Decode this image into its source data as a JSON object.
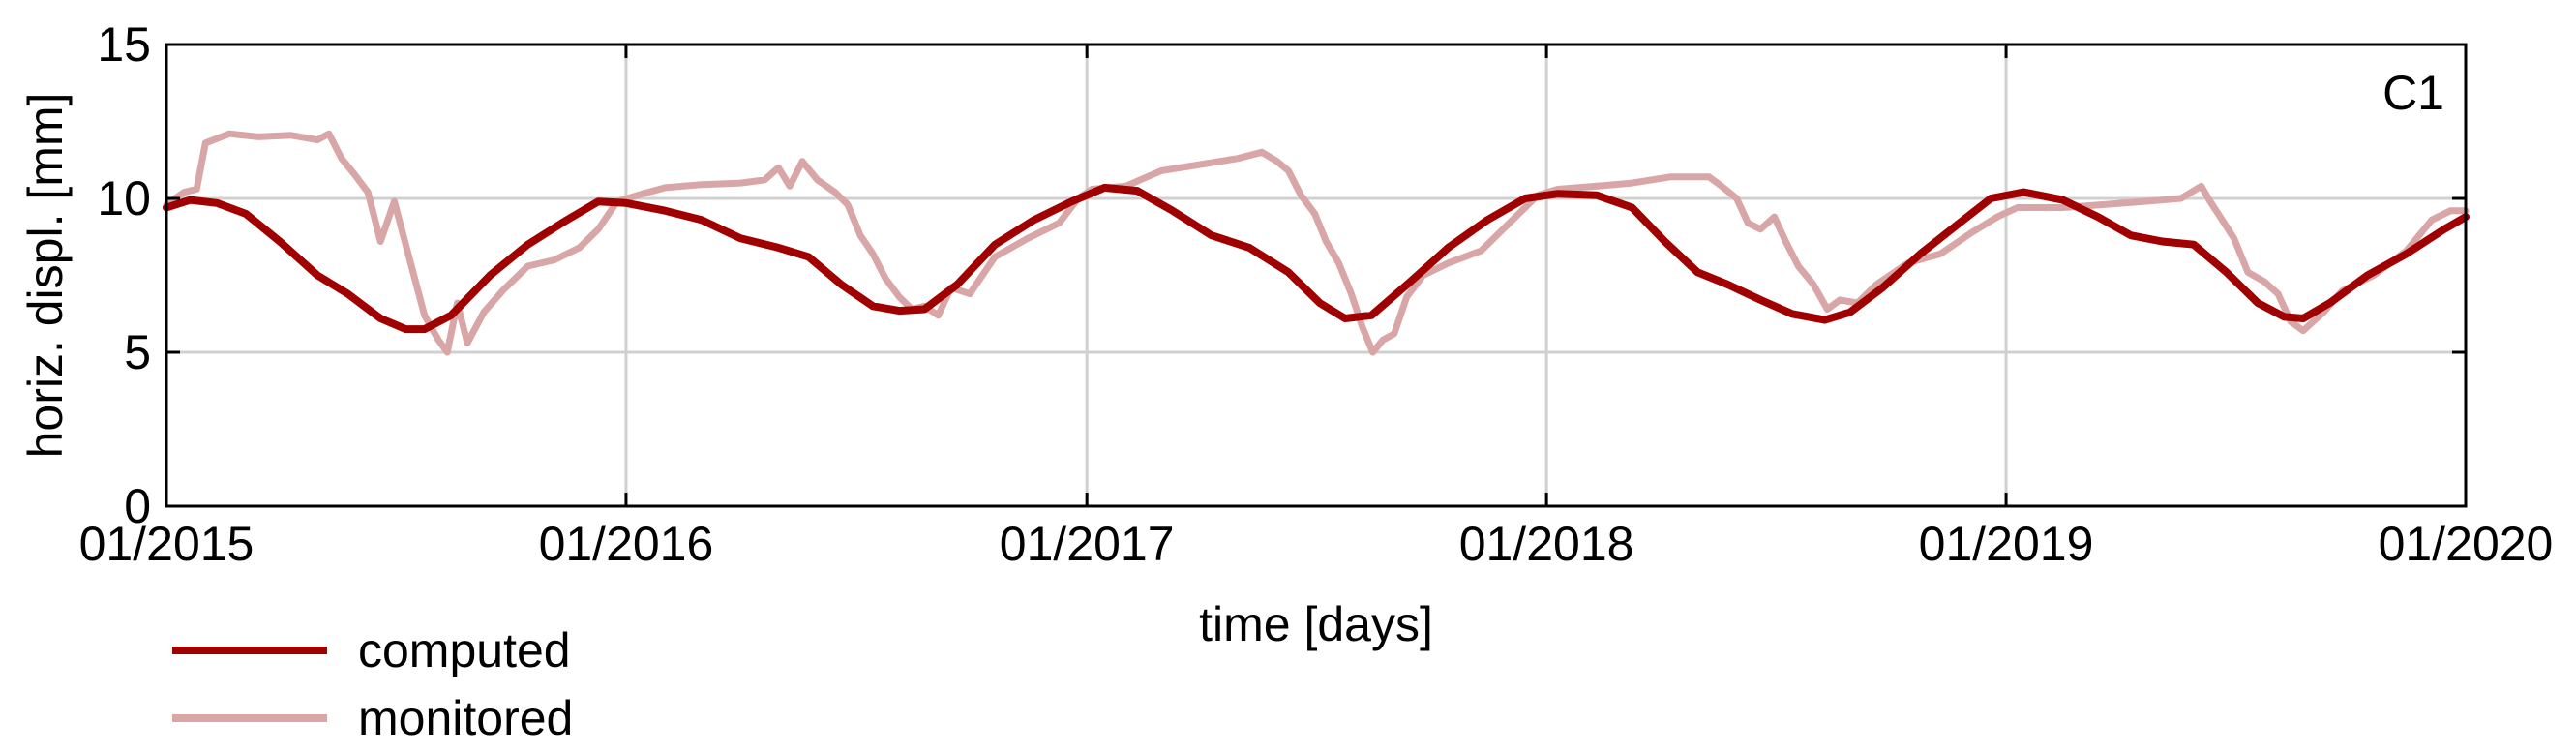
{
  "chart_data": {
    "type": "line",
    "title": "",
    "panel_label": "C1",
    "xlabel": "time [days]",
    "ylabel": "horiz. displ. [mm]",
    "ylim": [
      0,
      15
    ],
    "xlim": [
      "2015-01-01",
      "2020-01-01"
    ],
    "x_ticks": [
      "01/2015",
      "01/2016",
      "01/2017",
      "01/2018",
      "01/2019",
      "01/2020"
    ],
    "y_ticks": [
      "0",
      "5",
      "10",
      "15"
    ],
    "grid": true,
    "legend_position": "bottom-left, outside plot",
    "series": [
      {
        "name": "computed",
        "color": "#a00000",
        "points": [
          [
            "2015-01-01",
            9.7
          ],
          [
            "2015-01-20",
            9.95
          ],
          [
            "2015-02-10",
            9.85
          ],
          [
            "2015-03-05",
            9.5
          ],
          [
            "2015-04-01",
            8.6
          ],
          [
            "2015-05-01",
            7.5
          ],
          [
            "2015-05-25",
            6.9
          ],
          [
            "2015-06-20",
            6.1
          ],
          [
            "2015-07-10",
            5.75
          ],
          [
            "2015-07-25",
            5.75
          ],
          [
            "2015-08-15",
            6.2
          ],
          [
            "2015-09-15",
            7.5
          ],
          [
            "2015-10-15",
            8.5
          ],
          [
            "2015-11-15",
            9.3
          ],
          [
            "2015-12-10",
            9.9
          ],
          [
            "2016-01-01",
            9.85
          ],
          [
            "2016-02-01",
            9.6
          ],
          [
            "2016-03-01",
            9.3
          ],
          [
            "2016-04-01",
            8.7
          ],
          [
            "2016-05-01",
            8.4
          ],
          [
            "2016-05-25",
            8.1
          ],
          [
            "2016-06-20",
            7.2
          ],
          [
            "2016-07-15",
            6.5
          ],
          [
            "2016-08-05",
            6.35
          ],
          [
            "2016-08-25",
            6.4
          ],
          [
            "2016-09-20",
            7.2
          ],
          [
            "2016-10-20",
            8.5
          ],
          [
            "2016-11-20",
            9.3
          ],
          [
            "2016-12-20",
            9.9
          ],
          [
            "2017-01-15",
            10.35
          ],
          [
            "2017-02-10",
            10.25
          ],
          [
            "2017-03-10",
            9.6
          ],
          [
            "2017-04-10",
            8.8
          ],
          [
            "2017-05-10",
            8.4
          ],
          [
            "2017-06-10",
            7.6
          ],
          [
            "2017-07-05",
            6.6
          ],
          [
            "2017-07-25",
            6.1
          ],
          [
            "2017-08-15",
            6.2
          ],
          [
            "2017-09-15",
            7.3
          ],
          [
            "2017-10-15",
            8.4
          ],
          [
            "2017-11-15",
            9.3
          ],
          [
            "2017-12-15",
            10.0
          ],
          [
            "2018-01-10",
            10.15
          ],
          [
            "2018-02-10",
            10.1
          ],
          [
            "2018-03-10",
            9.7
          ],
          [
            "2018-04-05",
            8.6
          ],
          [
            "2018-05-01",
            7.6
          ],
          [
            "2018-05-25",
            7.2
          ],
          [
            "2018-06-20",
            6.7
          ],
          [
            "2018-07-15",
            6.25
          ],
          [
            "2018-08-10",
            6.05
          ],
          [
            "2018-08-30",
            6.3
          ],
          [
            "2018-09-25",
            7.1
          ],
          [
            "2018-10-25",
            8.2
          ],
          [
            "2018-11-25",
            9.2
          ],
          [
            "2018-12-20",
            10.0
          ],
          [
            "2019-01-15",
            10.2
          ],
          [
            "2019-02-15",
            9.95
          ],
          [
            "2019-03-15",
            9.4
          ],
          [
            "2019-04-10",
            8.8
          ],
          [
            "2019-05-05",
            8.6
          ],
          [
            "2019-05-30",
            8.5
          ],
          [
            "2019-06-25",
            7.6
          ],
          [
            "2019-07-20",
            6.6
          ],
          [
            "2019-08-10",
            6.15
          ],
          [
            "2019-08-25",
            6.1
          ],
          [
            "2019-09-15",
            6.6
          ],
          [
            "2019-10-15",
            7.5
          ],
          [
            "2019-11-15",
            8.2
          ],
          [
            "2019-12-15",
            9.0
          ],
          [
            "2020-01-01",
            9.4
          ]
        ]
      },
      {
        "name": "monitored",
        "color": "#d8a6a6",
        "points": [
          [
            "2015-01-01",
            9.8
          ],
          [
            "2015-01-15",
            10.2
          ],
          [
            "2015-01-25",
            10.3
          ],
          [
            "2015-02-01",
            11.8
          ],
          [
            "2015-02-20",
            12.1
          ],
          [
            "2015-03-15",
            12.0
          ],
          [
            "2015-04-10",
            12.05
          ],
          [
            "2015-05-01",
            11.9
          ],
          [
            "2015-05-10",
            12.1
          ],
          [
            "2015-05-20",
            11.3
          ],
          [
            "2015-05-30",
            10.8
          ],
          [
            "2015-06-10",
            10.2
          ],
          [
            "2015-06-20",
            8.6
          ],
          [
            "2015-07-01",
            9.9
          ],
          [
            "2015-07-12",
            8.2
          ],
          [
            "2015-07-25",
            6.2
          ],
          [
            "2015-08-05",
            5.4
          ],
          [
            "2015-08-12",
            5.0
          ],
          [
            "2015-08-20",
            6.6
          ],
          [
            "2015-08-28",
            5.3
          ],
          [
            "2015-09-10",
            6.3
          ],
          [
            "2015-09-25",
            7.0
          ],
          [
            "2015-10-15",
            7.8
          ],
          [
            "2015-11-05",
            8.0
          ],
          [
            "2015-11-25",
            8.4
          ],
          [
            "2015-12-10",
            9.0
          ],
          [
            "2015-12-25",
            9.9
          ],
          [
            "2016-01-10",
            10.1
          ],
          [
            "2016-02-01",
            10.35
          ],
          [
            "2016-03-01",
            10.45
          ],
          [
            "2016-04-01",
            10.5
          ],
          [
            "2016-04-20",
            10.6
          ],
          [
            "2016-05-01",
            11.0
          ],
          [
            "2016-05-10",
            10.4
          ],
          [
            "2016-05-20",
            11.2
          ],
          [
            "2016-06-01",
            10.6
          ],
          [
            "2016-06-15",
            10.2
          ],
          [
            "2016-06-25",
            9.8
          ],
          [
            "2016-07-05",
            8.8
          ],
          [
            "2016-07-15",
            8.2
          ],
          [
            "2016-07-25",
            7.4
          ],
          [
            "2016-08-05",
            6.8
          ],
          [
            "2016-08-15",
            6.4
          ],
          [
            "2016-08-25",
            6.5
          ],
          [
            "2016-09-05",
            6.2
          ],
          [
            "2016-09-15",
            7.1
          ],
          [
            "2016-09-30",
            6.9
          ],
          [
            "2016-10-20",
            8.1
          ],
          [
            "2016-11-15",
            8.7
          ],
          [
            "2016-12-10",
            9.2
          ],
          [
            "2016-12-25",
            10.0
          ],
          [
            "2017-01-05",
            10.3
          ],
          [
            "2017-02-01",
            10.4
          ],
          [
            "2017-03-01",
            10.9
          ],
          [
            "2017-04-01",
            11.1
          ],
          [
            "2017-05-01",
            11.3
          ],
          [
            "2017-05-20",
            11.5
          ],
          [
            "2017-06-01",
            11.2
          ],
          [
            "2017-06-10",
            10.9
          ],
          [
            "2017-06-20",
            10.1
          ],
          [
            "2017-07-01",
            9.5
          ],
          [
            "2017-07-10",
            8.6
          ],
          [
            "2017-07-20",
            7.9
          ],
          [
            "2017-07-30",
            6.9
          ],
          [
            "2017-08-08",
            5.8
          ],
          [
            "2017-08-16",
            5.0
          ],
          [
            "2017-08-24",
            5.4
          ],
          [
            "2017-09-02",
            5.6
          ],
          [
            "2017-09-12",
            6.8
          ],
          [
            "2017-09-25",
            7.5
          ],
          [
            "2017-10-15",
            7.9
          ],
          [
            "2017-11-10",
            8.3
          ],
          [
            "2017-12-05",
            9.3
          ],
          [
            "2017-12-25",
            10.1
          ],
          [
            "2018-01-10",
            10.3
          ],
          [
            "2018-02-10",
            10.4
          ],
          [
            "2018-03-10",
            10.5
          ],
          [
            "2018-04-10",
            10.7
          ],
          [
            "2018-05-10",
            10.7
          ],
          [
            "2018-05-20",
            10.4
          ],
          [
            "2018-06-01",
            10.0
          ],
          [
            "2018-06-10",
            9.2
          ],
          [
            "2018-06-20",
            9.0
          ],
          [
            "2018-07-01",
            9.4
          ],
          [
            "2018-07-10",
            8.6
          ],
          [
            "2018-07-20",
            7.8
          ],
          [
            "2018-08-01",
            7.2
          ],
          [
            "2018-08-12",
            6.4
          ],
          [
            "2018-08-22",
            6.7
          ],
          [
            "2018-09-05",
            6.6
          ],
          [
            "2018-09-20",
            7.2
          ],
          [
            "2018-10-15",
            7.9
          ],
          [
            "2018-11-10",
            8.2
          ],
          [
            "2018-12-05",
            8.9
          ],
          [
            "2018-12-25",
            9.4
          ],
          [
            "2019-01-10",
            9.7
          ],
          [
            "2019-02-15",
            9.7
          ],
          [
            "2019-03-20",
            9.8
          ],
          [
            "2019-04-20",
            9.9
          ],
          [
            "2019-05-20",
            10.0
          ],
          [
            "2019-06-05",
            10.4
          ],
          [
            "2019-06-12",
            9.9
          ],
          [
            "2019-06-20",
            9.4
          ],
          [
            "2019-07-01",
            8.7
          ],
          [
            "2019-07-12",
            7.6
          ],
          [
            "2019-07-25",
            7.3
          ],
          [
            "2019-08-05",
            6.9
          ],
          [
            "2019-08-15",
            6.0
          ],
          [
            "2019-08-25",
            5.7
          ],
          [
            "2019-09-10",
            6.3
          ],
          [
            "2019-09-25",
            7.0
          ],
          [
            "2019-10-20",
            7.5
          ],
          [
            "2019-11-15",
            8.3
          ],
          [
            "2019-12-05",
            9.3
          ],
          [
            "2019-12-20",
            9.6
          ],
          [
            "2020-01-01",
            9.6
          ]
        ]
      }
    ]
  }
}
